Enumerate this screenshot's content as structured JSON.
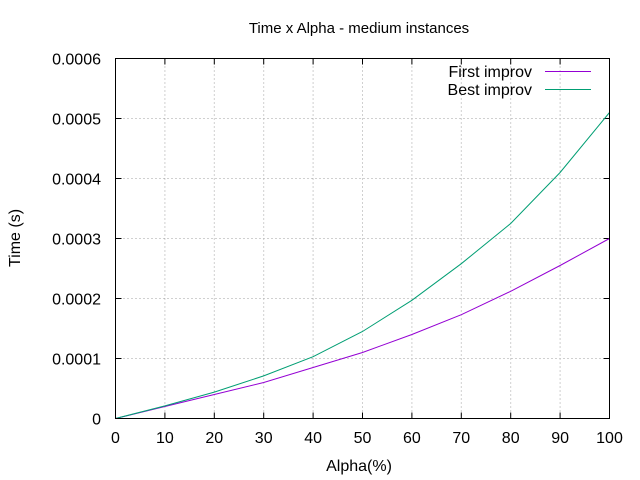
{
  "chart_data": {
    "type": "line",
    "title": "Time x Alpha - medium instances",
    "xlabel": "Alpha(%)",
    "ylabel": "Time (s)",
    "xlim": [
      0,
      100
    ],
    "ylim": [
      0,
      0.0006
    ],
    "x_ticks": [
      "0",
      "10",
      "20",
      "30",
      "40",
      "50",
      "60",
      "70",
      "80",
      "90",
      "100"
    ],
    "y_ticks": [
      "0",
      "0.0001",
      "0.0002",
      "0.0003",
      "0.0004",
      "0.0005",
      "0.0006"
    ],
    "grid": true,
    "legend_position": "top-right",
    "x": [
      0,
      10,
      20,
      30,
      40,
      50,
      60,
      70,
      80,
      90,
      100
    ],
    "series": [
      {
        "name": "First improv",
        "color": "#9400d3",
        "values": [
          0,
          2e-05,
          4e-05,
          6e-05,
          8.5e-05,
          0.00011,
          0.00014,
          0.000173,
          0.000212,
          0.000255,
          0.0003
        ]
      },
      {
        "name": "Best improv",
        "color": "#009e73",
        "values": [
          0,
          2.1e-05,
          4.4e-05,
          7.1e-05,
          0.000103,
          0.000145,
          0.000197,
          0.000258,
          0.000325,
          0.00041,
          0.00051
        ]
      }
    ]
  }
}
